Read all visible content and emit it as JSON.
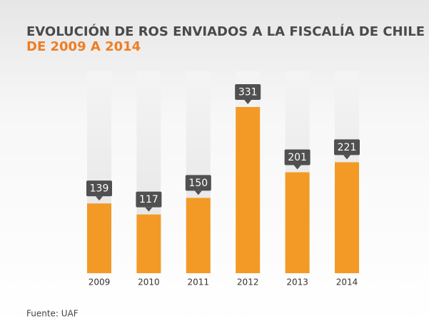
{
  "chart_data": {
    "type": "bar",
    "title": "EVOLUCIÓN DE ROS ENVIADOS A LA FISCALÍA DE CHILE",
    "subtitle": "DE 2009 A 2014",
    "categories": [
      "2009",
      "2010",
      "2011",
      "2012",
      "2013",
      "2014"
    ],
    "values": [
      139,
      117,
      150,
      331,
      201,
      221
    ],
    "color": "#f39a26",
    "source": "Fuente: UAF"
  }
}
